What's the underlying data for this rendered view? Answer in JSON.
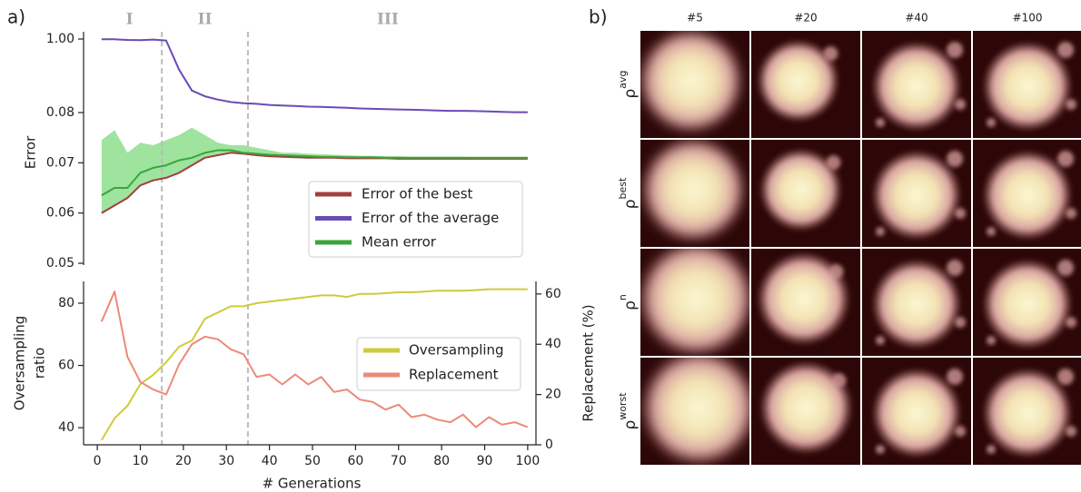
{
  "chart_data": [
    {
      "type": "line",
      "panel_label": "a)",
      "ylabel": "Error",
      "xlim": [
        -1.5,
        101.5
      ],
      "ylim": [
        0.05,
        1.0
      ],
      "ybreak": 0.08,
      "yscale_above_break": "log",
      "yticks": [
        {
          "value": 1.0,
          "label": "1.00"
        },
        0.08,
        0.07,
        0.06,
        0.05
      ],
      "vlines": [
        15,
        35
      ],
      "regions": [
        "I",
        "II",
        "III"
      ],
      "x": [
        1,
        4,
        7,
        10,
        13,
        16,
        19,
        22,
        25,
        28,
        31,
        34,
        37,
        40,
        43,
        46,
        49,
        52,
        55,
        58,
        61,
        64,
        67,
        70,
        73,
        76,
        79,
        82,
        85,
        88,
        91,
        94,
        97,
        100
      ],
      "series": [
        {
          "name": "Error of the best",
          "color": "#a23f3f",
          "values": [
            0.06,
            0.0615,
            0.063,
            0.0655,
            0.0665,
            0.067,
            0.068,
            0.0695,
            0.071,
            0.0715,
            0.072,
            0.0718,
            0.0715,
            0.0713,
            0.0712,
            0.0711,
            0.071,
            0.071,
            0.071,
            0.0709,
            0.0709,
            0.0709,
            0.0709,
            0.0708,
            0.0708,
            0.0708,
            0.0708,
            0.0708,
            0.0708,
            0.0708,
            0.0708,
            0.0708,
            0.0708,
            0.0708
          ]
        },
        {
          "name": "Error of the average",
          "color": "#6a4bb5",
          "values": [
            0.99,
            0.99,
            0.97,
            0.96,
            0.98,
            0.95,
            0.35,
            0.17,
            0.14,
            0.125,
            0.115,
            0.11,
            0.108,
            0.104,
            0.102,
            0.1,
            0.098,
            0.097,
            0.096,
            0.094,
            0.092,
            0.091,
            0.09,
            0.089,
            0.088,
            0.087,
            0.086,
            0.085,
            0.085,
            0.084,
            0.083,
            0.082,
            0.081,
            0.081
          ]
        },
        {
          "name": "Mean error",
          "color": "#3aa53a",
          "values": [
            0.0635,
            0.065,
            0.065,
            0.068,
            0.069,
            0.0695,
            0.0705,
            0.071,
            0.072,
            0.0725,
            0.0725,
            0.072,
            0.0718,
            0.0716,
            0.0715,
            0.0714,
            0.0713,
            0.0712,
            0.0712,
            0.0711,
            0.0711,
            0.0711,
            0.071,
            0.071,
            0.071,
            0.071,
            0.071,
            0.071,
            0.071,
            0.071,
            0.071,
            0.071,
            0.071,
            0.071
          ]
        }
      ],
      "band": {
        "color": "#9ee39e",
        "low": [
          0.06,
          0.0615,
          0.063,
          0.0655,
          0.0665,
          0.067,
          0.068,
          0.0695,
          0.071,
          0.0715,
          0.072,
          0.0718,
          0.0715,
          0.0713,
          0.0712,
          0.0711,
          0.071,
          0.071,
          0.071,
          0.0709,
          0.0709,
          0.0709,
          0.0709,
          0.0708,
          0.0708,
          0.0708,
          0.0708,
          0.0708,
          0.0708,
          0.0708,
          0.0708,
          0.0708,
          0.0708,
          0.0708
        ],
        "high": [
          0.0745,
          0.0765,
          0.072,
          0.074,
          0.0735,
          0.0745,
          0.0755,
          0.077,
          0.0755,
          0.074,
          0.0735,
          0.0735,
          0.073,
          0.0725,
          0.072,
          0.072,
          0.0718,
          0.0717,
          0.0716,
          0.0715,
          0.0714,
          0.0714,
          0.0713,
          0.0713,
          0.0712,
          0.0712,
          0.0712,
          0.0712,
          0.0712,
          0.0711,
          0.0711,
          0.0711,
          0.0711,
          0.0711
        ]
      }
    },
    {
      "type": "line",
      "xlabel": "# Generations",
      "ylabel": [
        "Oversampling",
        "ratio"
      ],
      "y2label": "Replacement (%)",
      "xlim": [
        -1.5,
        101.5
      ],
      "xticks": [
        0,
        10,
        20,
        30,
        40,
        50,
        60,
        70,
        80,
        90,
        100
      ],
      "ylim": [
        34.5,
        87
      ],
      "yticks": [
        40,
        60,
        80
      ],
      "y2lim": [
        0,
        65
      ],
      "y2ticks": [
        0,
        20,
        40,
        60
      ],
      "x": [
        1,
        4,
        7,
        10,
        13,
        16,
        19,
        22,
        25,
        28,
        31,
        34,
        37,
        40,
        43,
        46,
        49,
        52,
        55,
        58,
        61,
        64,
        67,
        70,
        73,
        76,
        79,
        82,
        85,
        88,
        91,
        94,
        97,
        100
      ],
      "series": [
        {
          "name": "Oversampling",
          "color": "#cfcb3c",
          "values": [
            36,
            43,
            47,
            54,
            57,
            61,
            66,
            68,
            75,
            77,
            79,
            79,
            80,
            80.5,
            81,
            81.5,
            82,
            82.5,
            82.5,
            82,
            83,
            83,
            83.2,
            83.5,
            83.5,
            83.7,
            84,
            84,
            84,
            84.2,
            84.5,
            84.5,
            84.5,
            84.5
          ]
        },
        {
          "name": "Replacement",
          "color": "#ec8a78",
          "axis": "y2",
          "values": [
            49,
            61,
            35,
            25,
            22,
            20,
            32,
            40,
            43,
            42,
            38,
            36,
            27,
            28,
            24,
            28,
            24,
            27,
            21,
            22,
            18,
            17,
            14,
            16,
            11,
            12,
            10,
            9,
            12,
            7,
            11,
            8,
            9,
            7
          ]
        }
      ]
    }
  ],
  "image_grid": {
    "panel_label": "b)",
    "columns": [
      "#5",
      "#20",
      "#40",
      "#100"
    ],
    "rows": [
      {
        "symbol": "ρ",
        "sup": "avg"
      },
      {
        "symbol": "ρ",
        "sup": "best"
      },
      {
        "symbol": "ρ",
        "sup": "n"
      },
      {
        "symbol": "ρ",
        "sup": "worst"
      }
    ]
  }
}
